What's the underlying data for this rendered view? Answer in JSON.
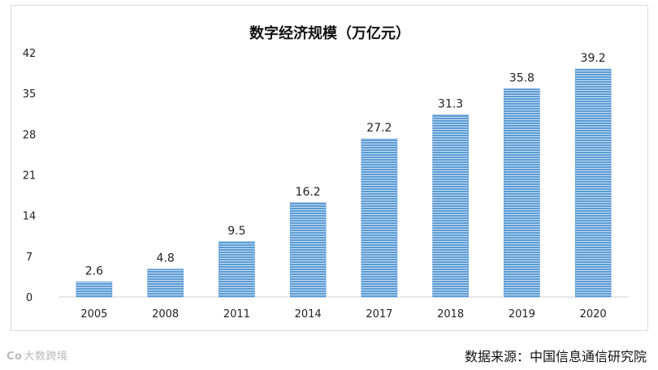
{
  "chart_data": {
    "type": "bar",
    "title": "数字经济规模（万亿元）",
    "categories": [
      "2005",
      "2008",
      "2011",
      "2014",
      "2017",
      "2018",
      "2019",
      "2020"
    ],
    "values": [
      2.6,
      4.8,
      9.5,
      16.2,
      27.2,
      31.3,
      35.8,
      39.2
    ],
    "data_labels": [
      "2.6",
      "4.8",
      "9.5",
      "16.2",
      "27.2",
      "31.3",
      "35.8",
      "39.2"
    ],
    "yticks": [
      0,
      7,
      14,
      21,
      28,
      35,
      42
    ],
    "ylim": [
      0,
      42
    ],
    "xlabel": "",
    "ylabel": "",
    "grid": false,
    "legend": "none",
    "bar_color": "#5b9bd5",
    "bar_stripe_color": "#c9def2"
  },
  "watermark": {
    "logo_mark": "Co",
    "text": "大数跨境"
  },
  "source_note": "数据来源：中国信息通信研究院"
}
